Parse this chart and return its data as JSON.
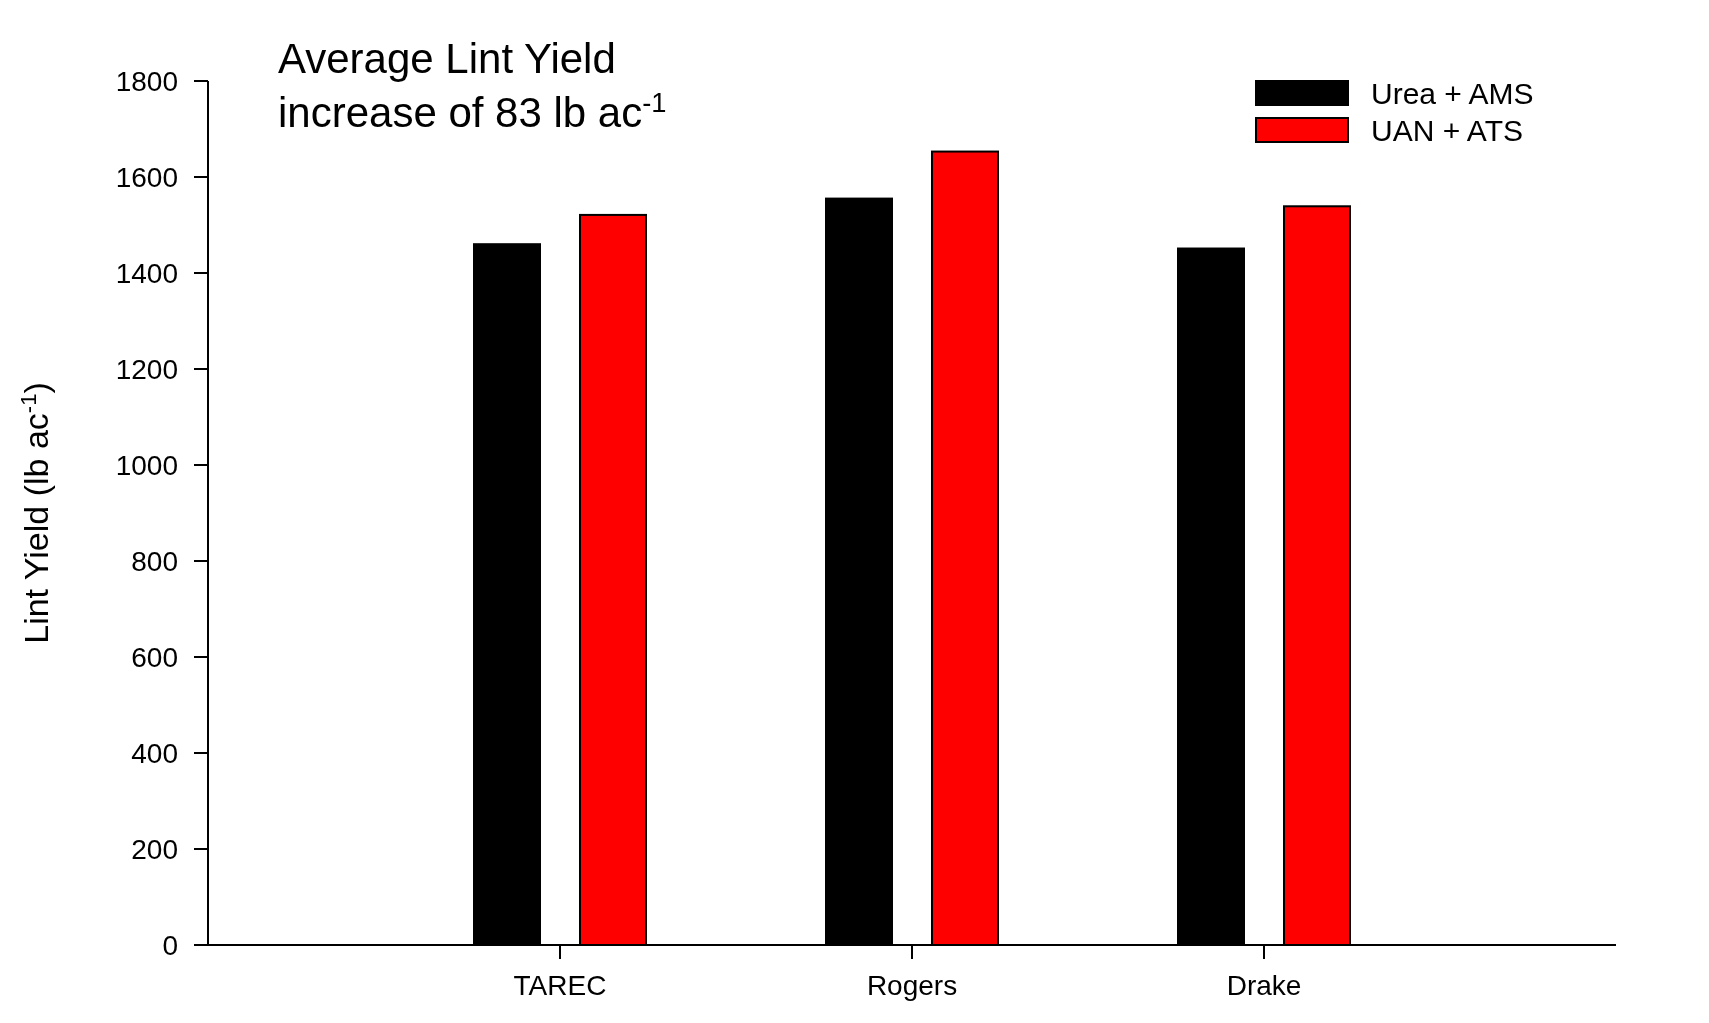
{
  "chart_data": {
    "type": "bar",
    "title": "Average Lint Yield increase of 83 lb ac$^{-1}$",
    "ylabel": "Lint Yield (lb ac$^{-1}$)",
    "categories": [
      "TAREC",
      "Rogers",
      "Drake"
    ],
    "series": [
      {
        "name": "Urea + AMS",
        "color": "#000000",
        "values": [
          1460,
          1555,
          1451
        ]
      },
      {
        "name": "UAN + ATS",
        "color": "#ff0000",
        "values": [
          1521,
          1653,
          1539
        ]
      }
    ],
    "ylim": [
      0,
      1800
    ],
    "yticks": [
      0,
      200,
      400,
      600,
      800,
      1000,
      1200,
      1400,
      1600,
      1800
    ],
    "grid": false,
    "legend": "top right"
  }
}
